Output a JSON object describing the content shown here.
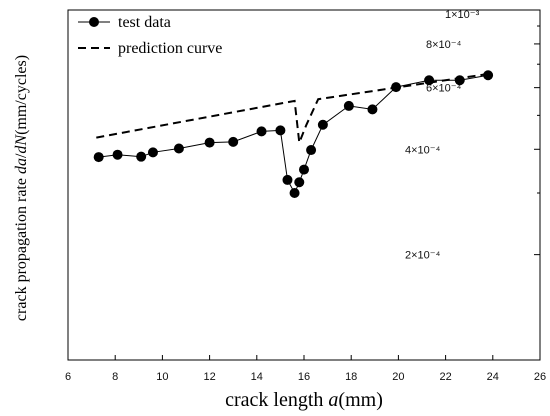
{
  "chart_data": {
    "type": "line",
    "title": "",
    "xlabel_text": "crack length ",
    "xlabel_var": "a",
    "xlabel_unit": "(mm)",
    "ylabel_text": "crack propagation rate ",
    "ylabel_var1": "da",
    "ylabel_slash": "/",
    "ylabel_var2": "dN",
    "ylabel_unit": "(mm/cycles)",
    "y_scale": "log",
    "xlim": [
      6,
      26
    ],
    "ylim": [
      0.0001,
      0.001
    ],
    "x_ticks": [
      "6",
      "8",
      "10",
      "12",
      "14",
      "16",
      "18",
      "20",
      "22",
      "24",
      "26"
    ],
    "y_tick_labels": {
      "t200": "2×10⁻⁴",
      "t400": "4×10⁻⁴",
      "t600": "6×10⁻⁴",
      "t800": "8×10⁻⁴",
      "t1000": "1×10⁻³"
    },
    "grid": false,
    "legend_position": "top-left",
    "series": [
      {
        "name": "test data",
        "style": "solid line with filled circle markers",
        "color": "#000000",
        "x": [
          7.3,
          8.1,
          9.1,
          9.6,
          10.7,
          12.0,
          13.0,
          14.2,
          15.0,
          15.3,
          15.6,
          15.8,
          16.0,
          16.3,
          16.8,
          17.9,
          18.9,
          19.9,
          21.3,
          22.6,
          23.8
        ],
        "y": [
          0.00038,
          0.000386,
          0.000381,
          0.000392,
          0.000402,
          0.000418,
          0.00042,
          0.00045,
          0.000453,
          0.000327,
          0.0003,
          0.000322,
          0.00035,
          0.000398,
          0.00047,
          0.000532,
          0.00052,
          0.000602,
          0.00063,
          0.00063,
          0.000651
        ]
      },
      {
        "name": "prediction curve",
        "style": "dashed line",
        "color": "#000000",
        "x": [
          7.2,
          15.6,
          15.8,
          16.1,
          16.6,
          19.9,
          23.9
        ],
        "y": [
          0.000432,
          0.00055,
          0.000418,
          0.00047,
          0.000556,
          0.0006,
          0.000658
        ]
      }
    ]
  }
}
